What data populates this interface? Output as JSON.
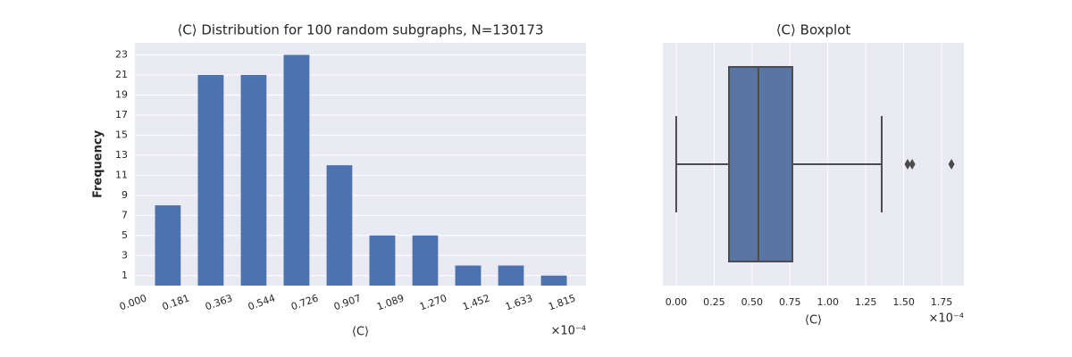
{
  "chart_data": [
    {
      "type": "histogram",
      "title": "⟨C⟩ Distribution for 100 random subgraphs, N=130173",
      "x_label": "⟨C⟩",
      "y_label": "Frequency",
      "x_offset_text": "×10⁻⁴",
      "bins": [
        0,
        0.181,
        0.363,
        0.544,
        0.726,
        0.907,
        1.089,
        1.27,
        1.452,
        1.633,
        1.815
      ],
      "values": [
        8,
        21,
        21,
        23,
        12,
        5,
        5,
        2,
        2,
        1
      ],
      "color": "#4c72b0",
      "xlim": [
        -0.049,
        1.86
      ],
      "ylim": [
        0,
        24.2
      ],
      "xticks": [
        {
          "value": 0,
          "label": "0.000"
        },
        0.181,
        0.363,
        0.544,
        0.726,
        0.907,
        1.089,
        {
          "value": 1.27,
          "label": "1.270"
        },
        1.452,
        1.633,
        1.815
      ],
      "yticks": [
        1,
        3,
        5,
        7,
        9,
        11,
        13,
        15,
        17,
        19,
        21,
        23
      ],
      "grid": "y"
    },
    {
      "type": "box",
      "title": "⟨C⟩ Boxplot",
      "x_label": "⟨C⟩",
      "x_offset_text": "×10⁻⁴",
      "box": {
        "whislo": 0,
        "q1": 0.348,
        "median": 0.542,
        "q3": 0.766,
        "whishi": 1.355,
        "fliers": [
          1.526,
          1.556,
          1.815
        ]
      },
      "color": "#5875a4",
      "xlim": [
        -0.088,
        1.897
      ],
      "xticks": [
        {
          "value": 0,
          "label": "0.00"
        },
        0.25,
        {
          "value": 0.5,
          "label": "0.50"
        },
        0.75,
        {
          "value": 1,
          "label": "1.00"
        },
        1.25,
        {
          "value": 1.5,
          "label": "1.50"
        },
        1.75
      ],
      "grid": "x"
    }
  ]
}
